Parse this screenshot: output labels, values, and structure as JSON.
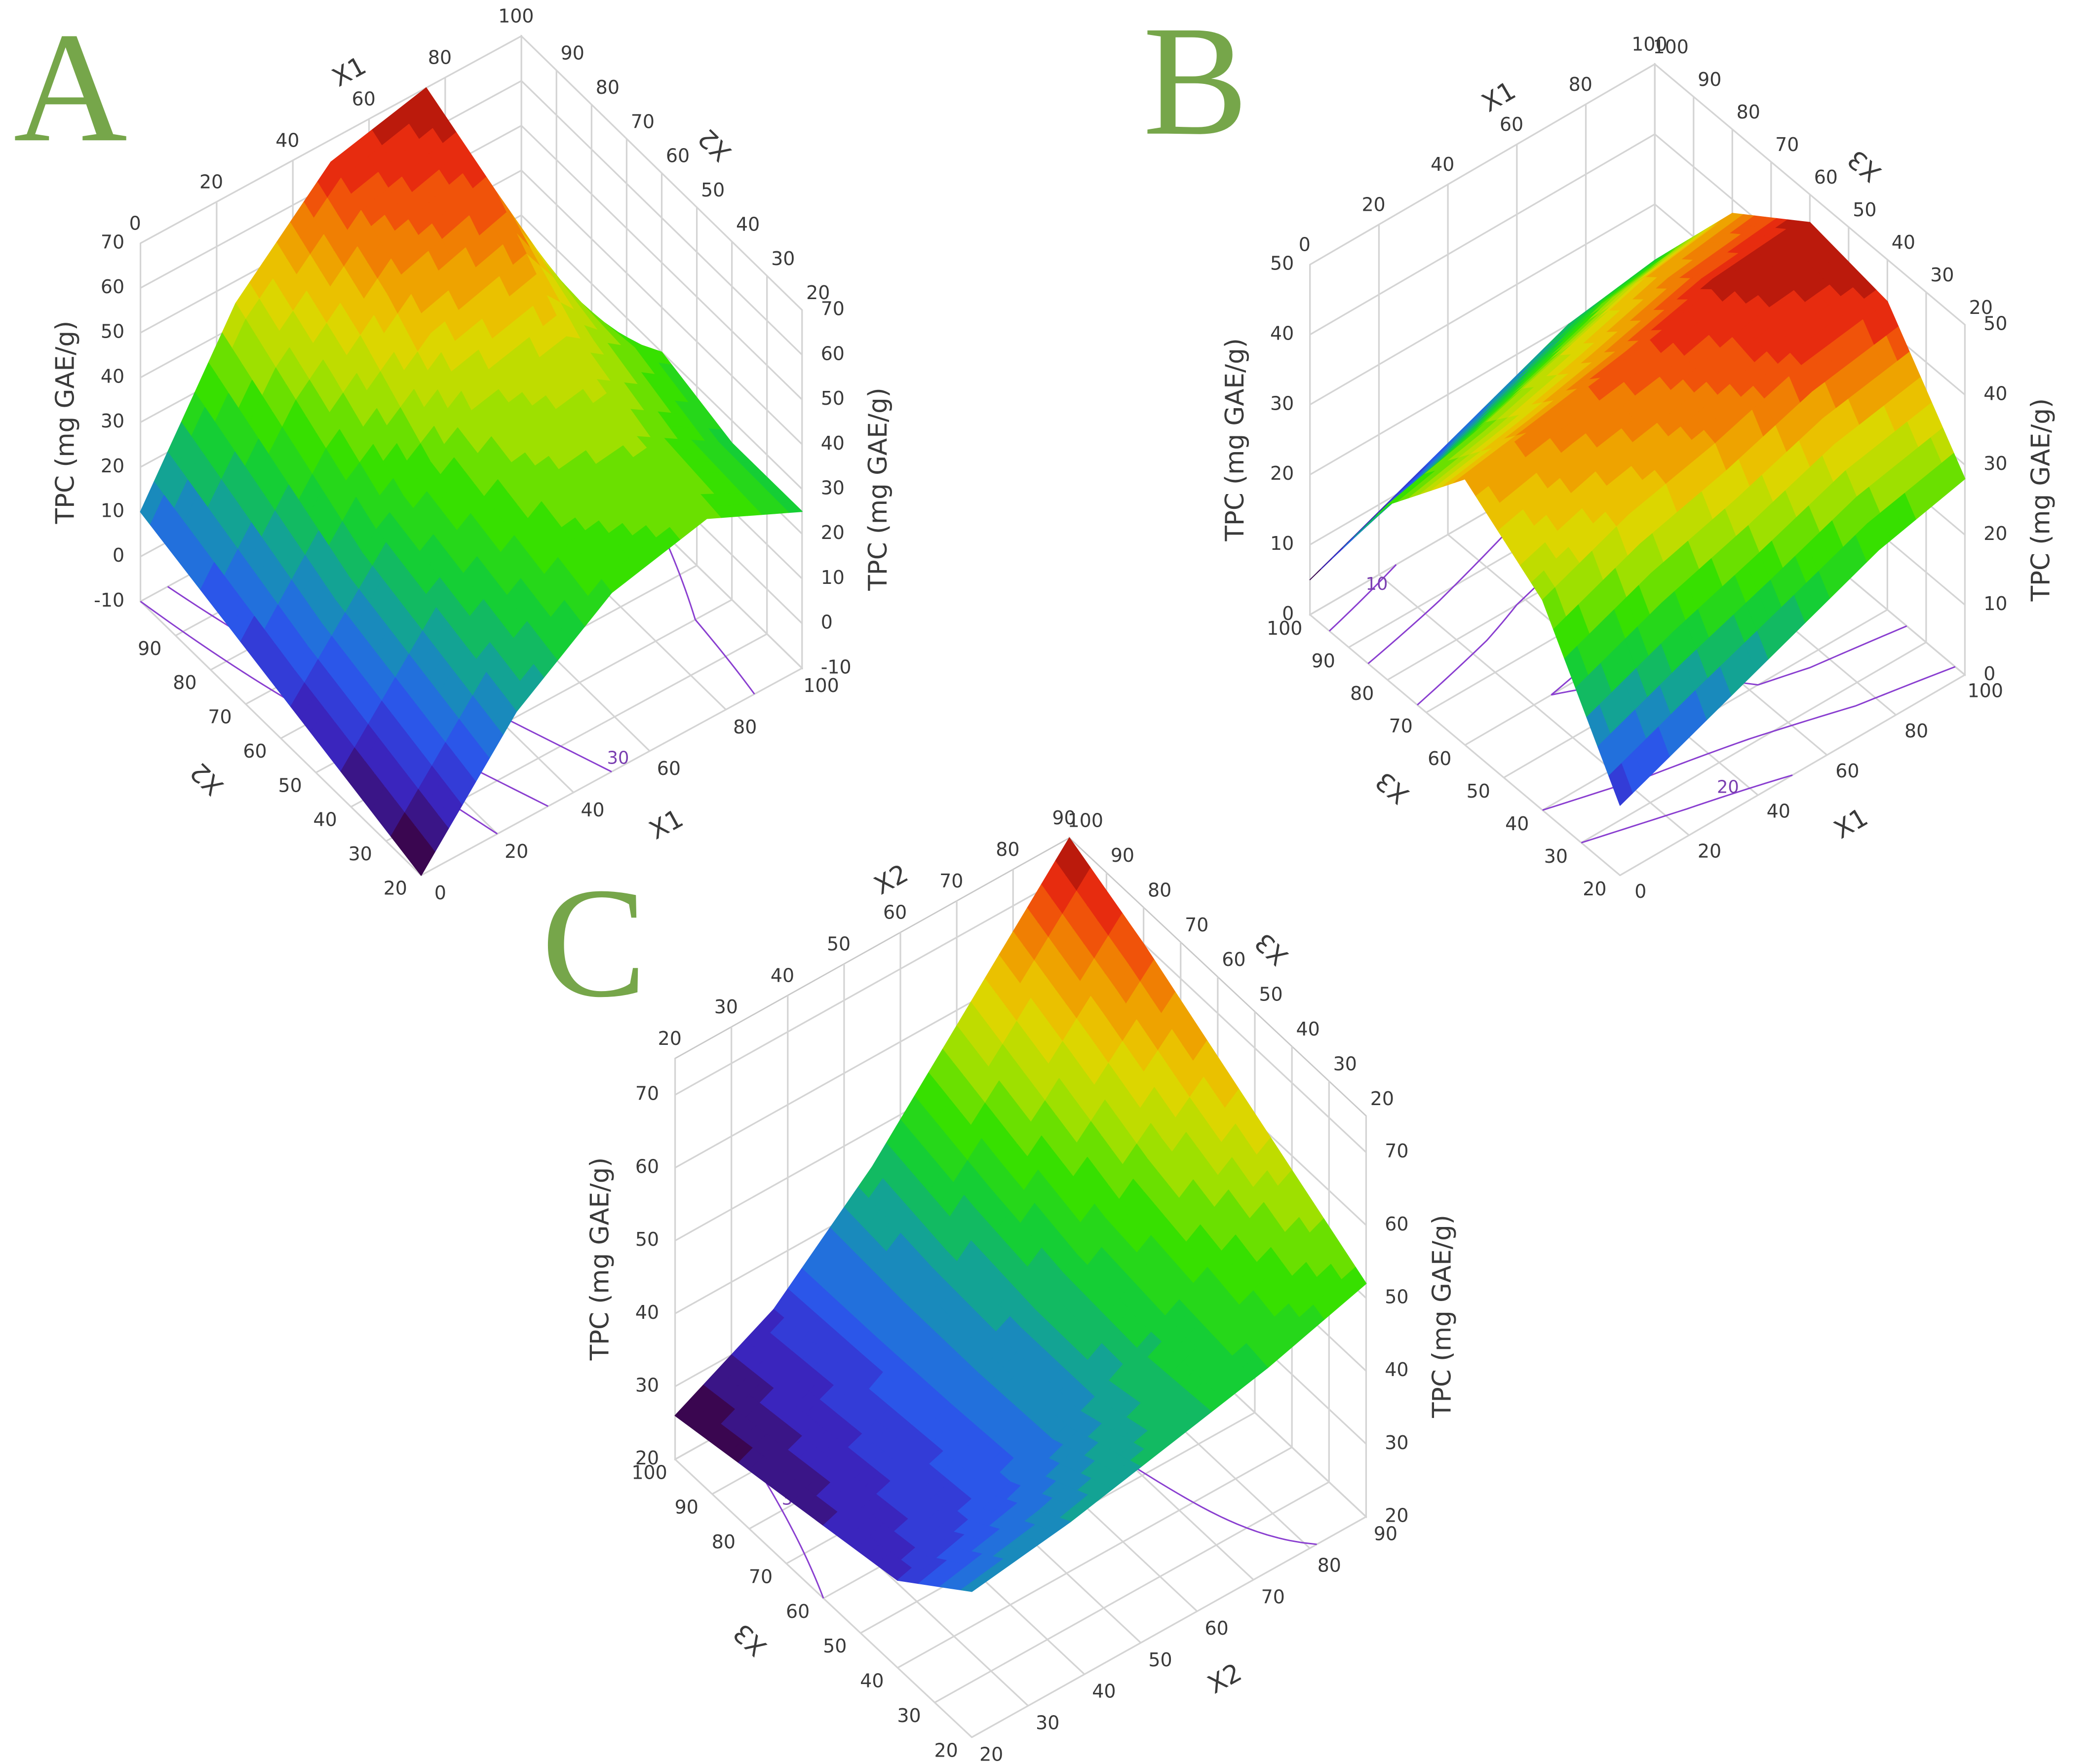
{
  "chart_data": [
    {
      "type": "surface",
      "panel_label": "A",
      "x_label": "X1",
      "y_label": "X2",
      "z_label": "TPC (mg GAE/g)",
      "xlim": [
        0,
        100
      ],
      "xticks": [
        0,
        20,
        40,
        60,
        80,
        100
      ],
      "ylim": [
        20,
        100
      ],
      "yticks": [
        20,
        30,
        40,
        50,
        60,
        70,
        80,
        90
      ],
      "zlim": [
        -10,
        70
      ],
      "zticks": [
        -10,
        0,
        10,
        20,
        30,
        40,
        50,
        60,
        70
      ],
      "x": [
        0,
        25,
        50,
        75,
        100
      ],
      "y": [
        20,
        40,
        60,
        80,
        100
      ],
      "z": [
        [
          -10,
          15,
          30,
          35,
          25
        ],
        [
          -5,
          20,
          35,
          38,
          25
        ],
        [
          0,
          25,
          40,
          45,
          30
        ],
        [
          5,
          35,
          55,
          62,
          20
        ],
        [
          10,
          45,
          65,
          70,
          10
        ]
      ],
      "contour_levels": [
        10,
        20,
        30
      ],
      "colormap": [
        "#3a0650",
        "#3a28c8",
        "#2860f0",
        "#139aa8",
        "#12cc3a",
        "#37e000",
        "#a8e000",
        "#e8d400",
        "#f09000",
        "#f03010",
        "#8e0808"
      ],
      "grid": true
    },
    {
      "type": "surface",
      "panel_label": "B",
      "x_label": "X1",
      "y_label": "X3",
      "z_label": "TPC (mg GAE/g)",
      "xlim": [
        0,
        100
      ],
      "xticks": [
        0,
        20,
        40,
        60,
        80,
        100
      ],
      "ylim": [
        20,
        100
      ],
      "yticks": [
        20,
        30,
        40,
        50,
        60,
        70,
        80,
        90,
        100
      ],
      "zlim": [
        0,
        50
      ],
      "zticks": [
        0,
        10,
        20,
        30,
        40,
        50
      ],
      "x": [
        0,
        25,
        50,
        75,
        100
      ],
      "y": [
        20,
        40,
        60,
        80,
        100
      ],
      "z": [
        [
          10,
          15,
          20,
          25,
          28
        ],
        [
          30,
          35,
          38,
          42,
          44
        ],
        [
          38,
          40,
          42,
          45,
          46
        ],
        [
          25,
          28,
          32,
          36,
          38
        ],
        [
          5,
          10,
          15,
          20,
          22
        ]
      ],
      "contour_levels": [
        10,
        20,
        30,
        40
      ],
      "colormap": [
        "#3a0650",
        "#3a28c8",
        "#2860f0",
        "#139aa8",
        "#12cc3a",
        "#37e000",
        "#a8e000",
        "#e8d400",
        "#f09000",
        "#f03010",
        "#8e0808"
      ],
      "grid": true
    },
    {
      "type": "surface",
      "panel_label": "C",
      "x_label": "X2",
      "y_label": "X3",
      "z_label": "TPC (mg GAE/g)",
      "xlim": [
        20,
        90
      ],
      "xticks": [
        20,
        30,
        40,
        50,
        60,
        70,
        80,
        90
      ],
      "ylim": [
        20,
        100
      ],
      "yticks": [
        20,
        30,
        40,
        50,
        60,
        70,
        80,
        90,
        100
      ],
      "zlim": [
        20,
        75
      ],
      "zticks": [
        20,
        30,
        40,
        50,
        60,
        70
      ],
      "x": [
        20,
        37.5,
        55,
        72.5,
        90
      ],
      "y": [
        20,
        40,
        60,
        80,
        100
      ],
      "z": [
        [
          40,
          42,
          45,
          48,
          52
        ],
        [
          32,
          36,
          42,
          50,
          58
        ],
        [
          30,
          35,
          42,
          52,
          64
        ],
        [
          28,
          34,
          43,
          56,
          70
        ],
        [
          26,
          33,
          45,
          60,
          75
        ]
      ],
      "contour_levels": [
        30,
        50
      ],
      "colormap": [
        "#3a0650",
        "#3a28c8",
        "#2860f0",
        "#139aa8",
        "#12cc3a",
        "#37e000",
        "#a8e000",
        "#e8d400",
        "#f09000",
        "#f03010",
        "#8e0808"
      ],
      "grid": true
    }
  ]
}
